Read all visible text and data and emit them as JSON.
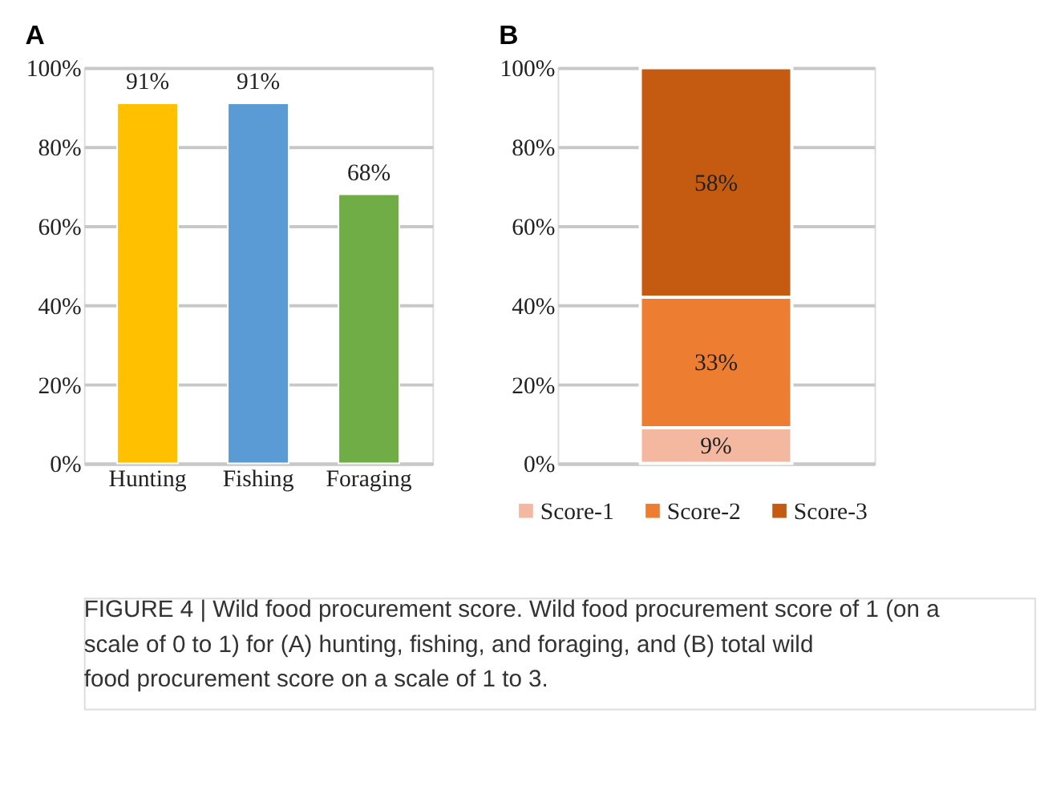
{
  "chart_data": [
    {
      "type": "bar",
      "title": "A",
      "categories": [
        "Hunting",
        "Fishing",
        "Foraging"
      ],
      "values": [
        91,
        91,
        68
      ],
      "colors": [
        "#ffc000",
        "#5b9bd5",
        "#70ad47"
      ],
      "data_labels": true,
      "value_labels": [
        "91%",
        "91%",
        "68%"
      ],
      "ylim": [
        0,
        100
      ],
      "yticks": [
        {
          "value": 0,
          "label": "0%"
        },
        {
          "value": 20,
          "label": "20%"
        },
        {
          "value": 40,
          "label": "40%"
        },
        {
          "value": 60,
          "label": "60%"
        },
        {
          "value": 80,
          "label": "80%"
        },
        {
          "value": 100,
          "label": "100%"
        }
      ],
      "grid": "y"
    },
    {
      "type": "bar",
      "title": "B",
      "categories": [
        null
      ],
      "stacked": true,
      "legend": "bottom",
      "data_labels": true,
      "series": [
        {
          "name": "Score-1",
          "color": "#f4b8a0",
          "values": [
            9
          ],
          "value_labels": [
            "9%"
          ]
        },
        {
          "name": "Score-2",
          "color": "#ed7d31",
          "values": [
            33
          ],
          "value_labels": [
            "33%"
          ]
        },
        {
          "name": "Score-3",
          "color": "#c55a11",
          "values": [
            58
          ],
          "value_labels": [
            "58%"
          ]
        }
      ],
      "ylim": [
        0,
        100
      ],
      "yticks": [
        {
          "value": 0,
          "label": "0%"
        },
        {
          "value": 20,
          "label": "20%"
        },
        {
          "value": 40,
          "label": "40%"
        },
        {
          "value": 60,
          "label": "60%"
        },
        {
          "value": 80,
          "label": "80%"
        },
        {
          "value": 100,
          "label": "100%"
        }
      ],
      "grid": "y",
      "annotations": [
        "FIGURE 4 | Wild food procurement score. Wild food procurement score of 1 (on a scale of 0 to 1) for (A) hunting, fishing, and foraging, and (B) total wild food procurement score on a scale of 1 to 3."
      ]
    }
  ]
}
